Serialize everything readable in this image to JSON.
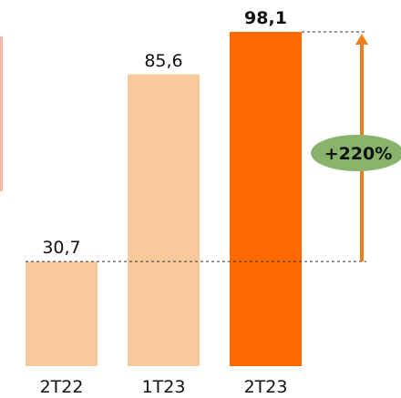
{
  "chart_data": {
    "type": "bar",
    "categories": [
      "2T22",
      "1T23",
      "2T23"
    ],
    "values": [
      30.7,
      85.6,
      98.1
    ],
    "value_labels": [
      "30,7",
      "85,6",
      "98,1"
    ],
    "highlight_index": 2,
    "ylim": [
      0,
      100
    ],
    "grid": false,
    "title": "",
    "xlabel": "",
    "ylabel": "",
    "colors": {
      "bar": "#f8c99a",
      "highlight": "#ff6a00",
      "arrow": "#f07c1c",
      "badge": "#88b36a",
      "text": "#111111",
      "accent_left": "#f4b9a6"
    },
    "annotation": {
      "label": "+220%",
      "from_index": 0,
      "to_index": 2
    }
  }
}
